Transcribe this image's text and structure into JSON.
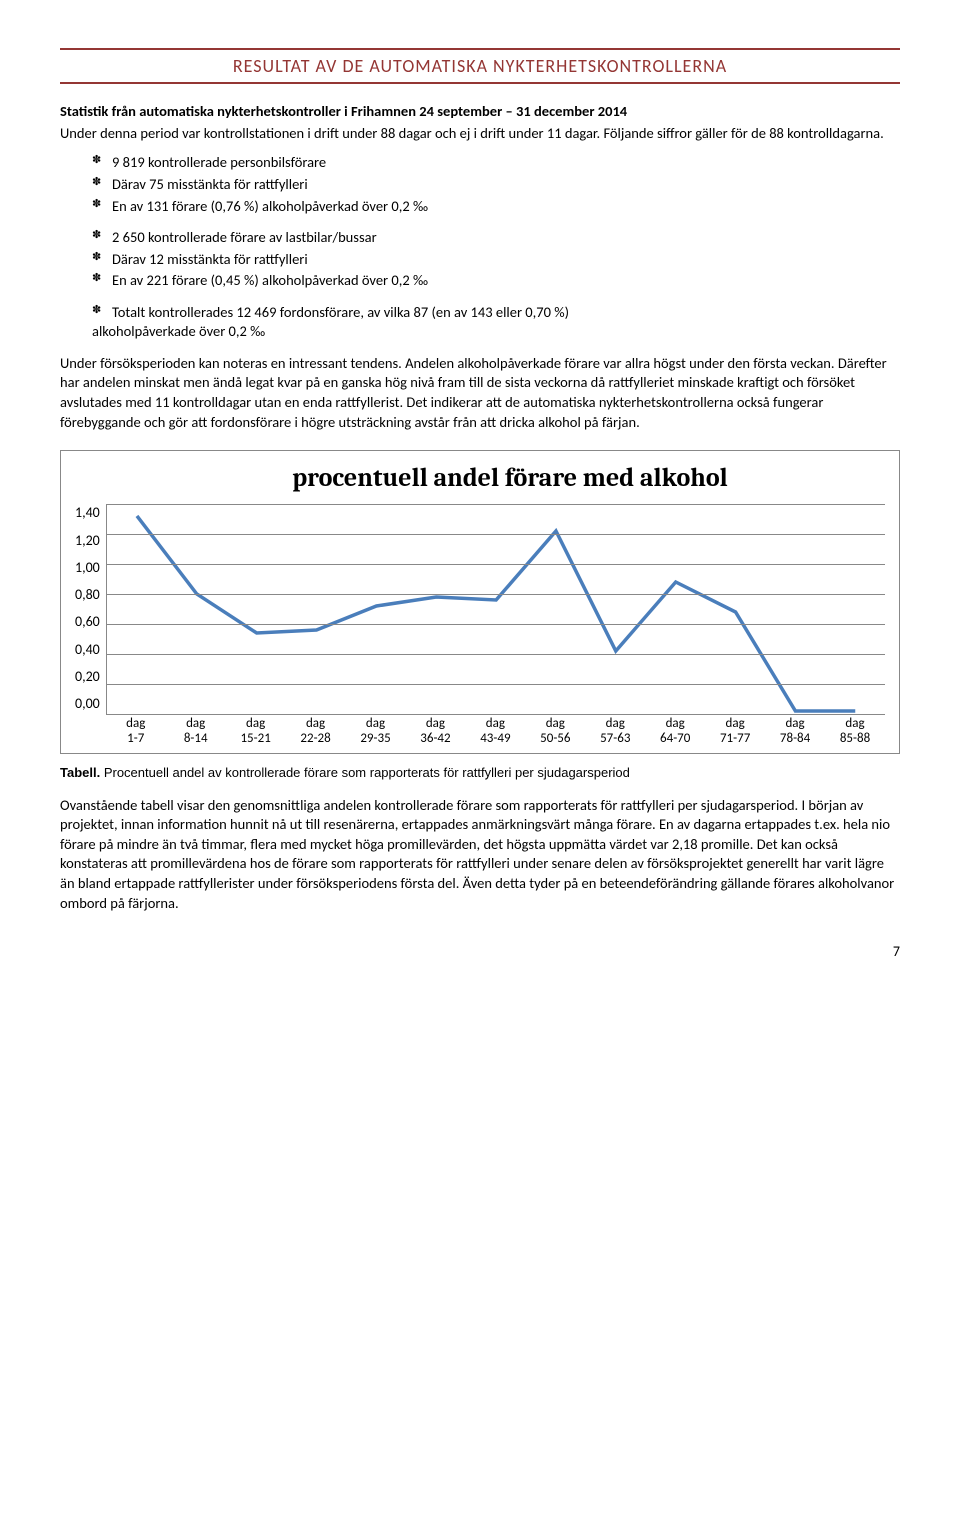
{
  "header": {
    "title": "RESULTAT AV DE AUTOMATISKA NYKTERHETSKONTROLLERNA"
  },
  "subtitle": "Statistik från automatiska nykterhetskontroller i Frihamnen 24 september – 31 december 2014",
  "intro": "Under denna period var kontrollstationen i drift under 88 dagar och ej i drift under 11 dagar. Följande siffror gäller för de 88 kontrolldagarna.",
  "bullets1": [
    "9 819 kontrollerade personbilsförare",
    "Därav 75 misstänkta för rattfylleri",
    "En av 131 förare (0,76 %) alkoholpåverkad över 0,2 ‰"
  ],
  "bullets2": [
    "2 650 kontrollerade förare av lastbilar/bussar",
    "Därav 12 misstänkta för rattfylleri",
    "En av 221 förare (0,45 %) alkoholpåverkad över 0,2 ‰"
  ],
  "bullets3_prefix": "Totalt kontrollerades 12 469 fordonsförare, av vilka 87 (en av 143 eller 0,70 %)",
  "bullets3_cont": "alkoholpåverkade över 0,2 ‰",
  "para1": "Under försöksperioden kan noteras en intressant tendens. Andelen alkoholpåverkade förare var allra högst under den första veckan. Därefter har andelen minskat men ändå legat kvar på en ganska hög nivå fram till de sista veckorna då rattfylleriet minskade kraftigt och försöket avslutades med 11 kontrolldagar utan en enda rattfyllerist. Det indikerar att de automatiska nykterhetskontrollerna också fungerar förebyggande och gör att fordonsförare i högre utsträckning avstår från att dricka alkohol på färjan.",
  "chart": {
    "type": "line",
    "title": "procentuell andel förare med alkohol",
    "y_ticks": [
      "1,40",
      "1,20",
      "1,00",
      "0,80",
      "0,60",
      "0,40",
      "0,20",
      "0,00"
    ],
    "ylim": [
      0,
      1.4
    ],
    "ytick_step": 0.2,
    "x_labels": [
      {
        "l1": "dag",
        "l2": "1-7"
      },
      {
        "l1": "dag",
        "l2": "8-14"
      },
      {
        "l1": "dag",
        "l2": "15-21"
      },
      {
        "l1": "dag",
        "l2": "22-28"
      },
      {
        "l1": "dag",
        "l2": "29-35"
      },
      {
        "l1": "dag",
        "l2": "36-42"
      },
      {
        "l1": "dag",
        "l2": "43-49"
      },
      {
        "l1": "dag",
        "l2": "50-56"
      },
      {
        "l1": "dag",
        "l2": "57-63"
      },
      {
        "l1": "dag",
        "l2": "64-70"
      },
      {
        "l1": "dag",
        "l2": "71-77"
      },
      {
        "l1": "dag",
        "l2": "78-84"
      },
      {
        "l1": "dag",
        "l2": "85-88"
      }
    ],
    "values": [
      1.32,
      0.8,
      0.54,
      0.56,
      0.72,
      0.78,
      0.76,
      1.22,
      0.42,
      0.88,
      0.68,
      0.02,
      0.02
    ],
    "line_color": "#4a7ebb",
    "line_width": 3.5,
    "grid_color": "#888888",
    "background_color": "#ffffff",
    "title_fontsize": 26,
    "tick_fontsize": 14
  },
  "caption_label": "Tabell.",
  "caption_text": " Procentuell andel av kontrollerade förare som rapporterats för rattfylleri per sjudagarsperiod",
  "para2": "Ovanstående tabell visar den genomsnittliga andelen kontrollerade förare som rapporterats för rattfylleri per sjudagarsperiod. I början av projektet, innan information hunnit nå ut till resenärerna, ertappades anmärkningsvärt många förare. En av dagarna ertappades t.ex. hela nio förare på mindre än två timmar, flera med mycket höga promillevärden, det högsta uppmätta värdet var 2,18 promille. Det kan också konstateras att promillevärdena hos de förare som rapporterats för rattfylleri under senare delen av försöksprojektet generellt har varit lägre än bland ertappade rattfyllerister under försöksperiodens första del. Även detta tyder på en beteendeförändring gällande förares alkoholvanor ombord på färjorna.",
  "pagenum": "7"
}
